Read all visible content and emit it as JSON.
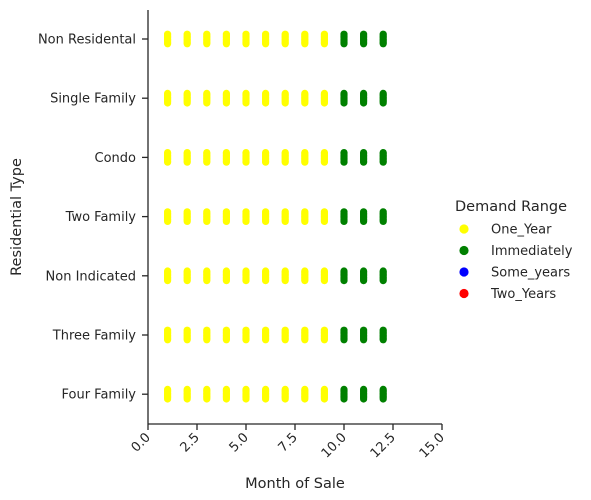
{
  "chart_data": {
    "type": "scatter",
    "xlabel": "Month of Sale",
    "ylabel": "Residential Type",
    "xlim": [
      0,
      15
    ],
    "xticks": [
      "0.0",
      "2.5",
      "5.0",
      "7.5",
      "10.0",
      "12.5",
      "15.0"
    ],
    "xtick_values": [
      0,
      2.5,
      5,
      7.5,
      10,
      12.5,
      15
    ],
    "categories": [
      "Non Residental",
      "Single Family",
      "Condo",
      "Two Family",
      "Non Indicated",
      "Three Family",
      "Four Family"
    ],
    "legend": {
      "title": "Demand Range",
      "placement": "center-right",
      "entries": [
        {
          "label": "One_Year",
          "color": "#ffff00"
        },
        {
          "label": "Immediately",
          "color": "#008000"
        },
        {
          "label": "Some_years",
          "color": "#0000ff"
        },
        {
          "label": "Two_Years",
          "color": "#ff0000"
        }
      ]
    },
    "series": [
      {
        "name": "One_Year",
        "color": "#ffff00",
        "months": [
          1,
          2,
          3,
          4,
          5,
          6,
          7,
          8,
          9
        ]
      },
      {
        "name": "Immediately",
        "color": "#008000",
        "months": [
          10,
          11,
          12
        ]
      }
    ],
    "grid": false,
    "xtick_rotation": 45
  }
}
